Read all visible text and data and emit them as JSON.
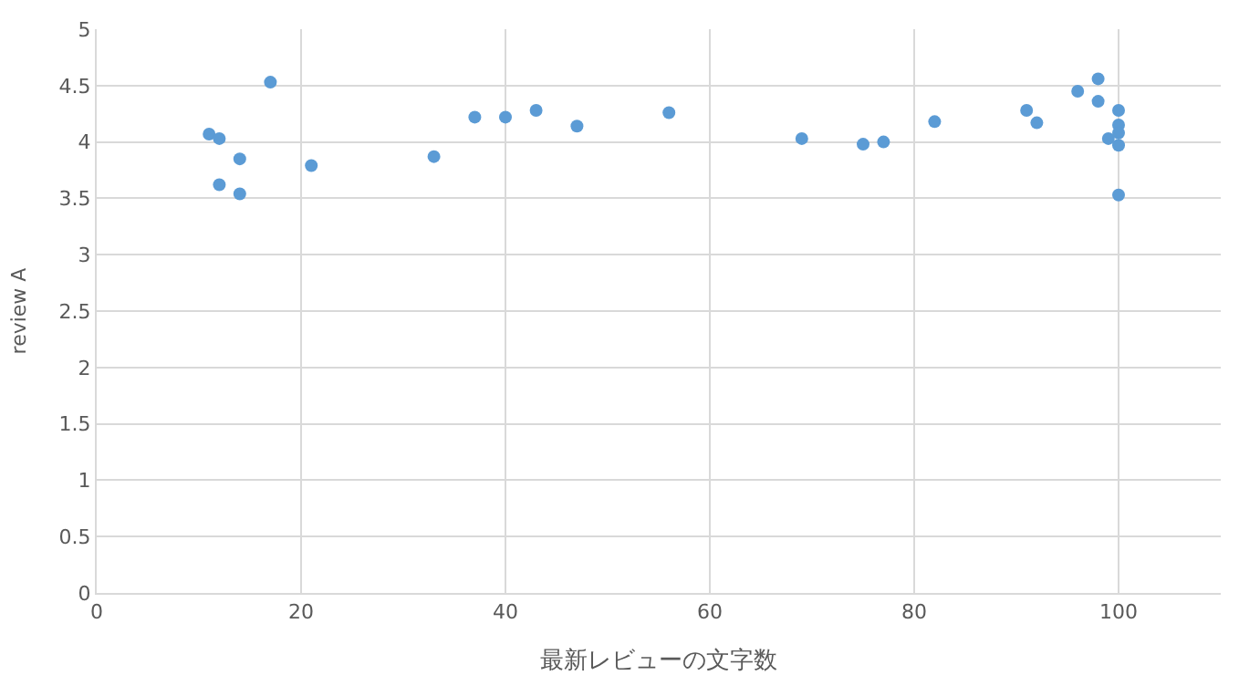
{
  "chart_data": {
    "type": "scatter",
    "xlabel": "最新レビューの文字数",
    "ylabel": "review A",
    "x": [
      11,
      12,
      14,
      12,
      14,
      17,
      21,
      33,
      37,
      40,
      43,
      47,
      56,
      69,
      75,
      77,
      82,
      91,
      92,
      96,
      98,
      98,
      99,
      100,
      100,
      100,
      100,
      100
    ],
    "series": [
      {
        "color": "#5b9bd5",
        "values": [
          4.07,
          4.03,
          3.85,
          3.62,
          3.54,
          4.53,
          3.79,
          3.87,
          4.22,
          4.22,
          4.28,
          4.14,
          4.26,
          4.03,
          3.98,
          4.0,
          4.18,
          4.28,
          4.17,
          4.45,
          4.56,
          4.36,
          4.03,
          4.28,
          4.15,
          4.08,
          3.97,
          3.53
        ]
      }
    ],
    "xlim": [
      0,
      110
    ],
    "xticks": [
      0,
      20,
      40,
      60,
      80,
      100
    ],
    "ylim": [
      0,
      5
    ],
    "yticks": [
      0,
      0.5,
      1,
      1.5,
      2,
      2.5,
      3,
      3.5,
      4,
      4.5,
      5
    ],
    "grid": true,
    "marker": "circle"
  }
}
